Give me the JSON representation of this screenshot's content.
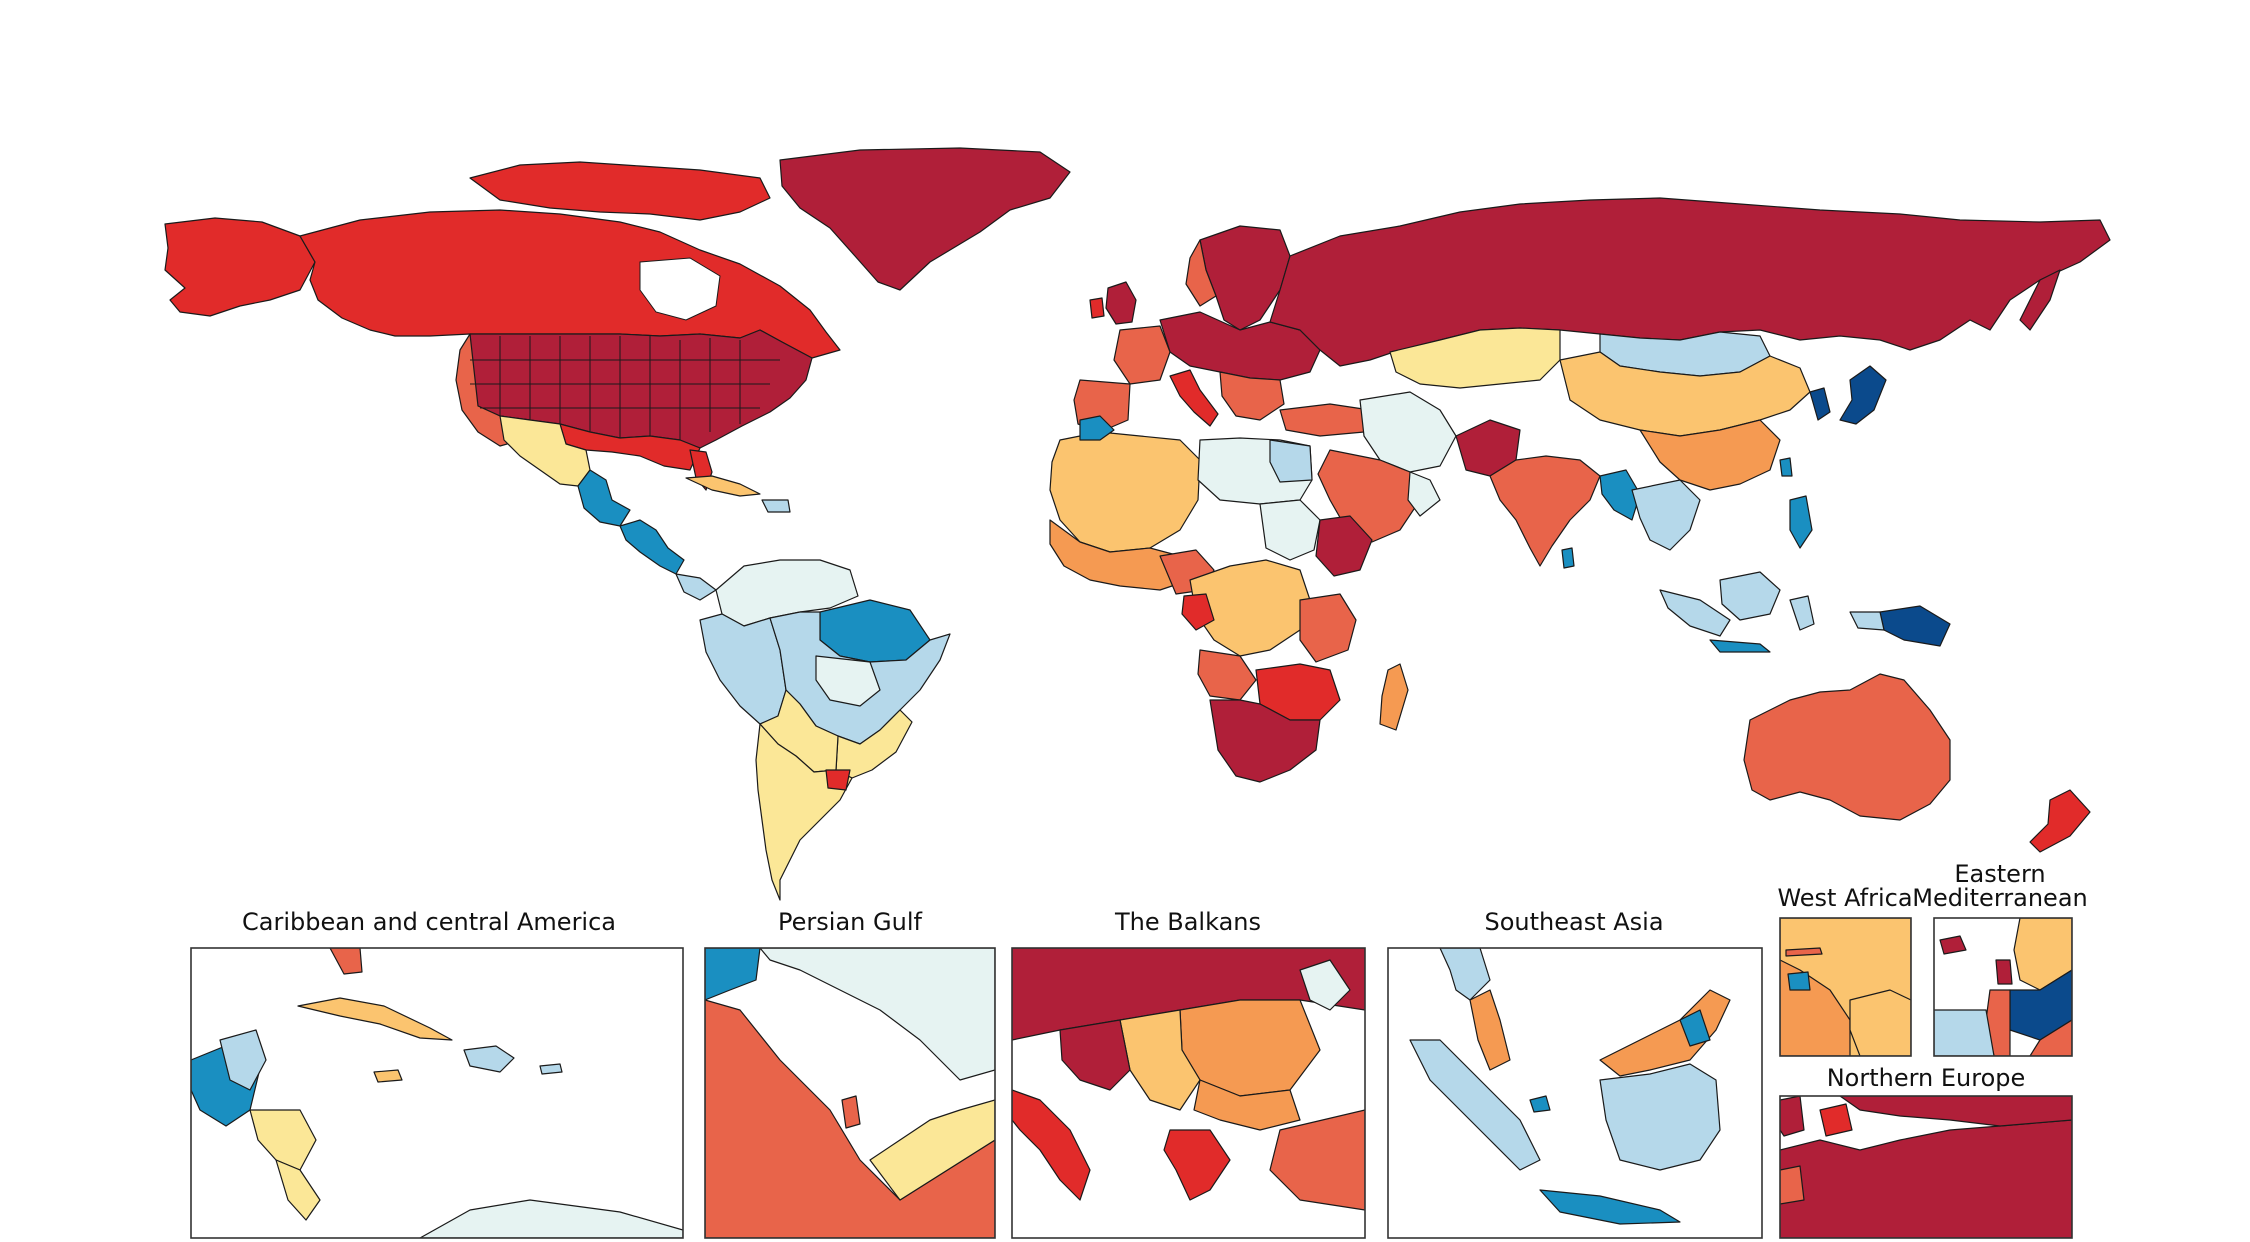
{
  "map": {
    "legend_present": false,
    "palette": {
      "c1": "#0b4a8c",
      "c2": "#1a8fc1",
      "c3": "#b5d8ea",
      "c4": "#e6f3f2",
      "c5": "#fbe797",
      "c6": "#fbc46f",
      "c7": "#f59a52",
      "c8": "#e8644a",
      "c9": "#e12b2a",
      "c10": "#b01f39"
    },
    "insets": [
      {
        "title": "Caribbean and central America"
      },
      {
        "title": "Persian Gulf"
      },
      {
        "title": "The Balkans"
      },
      {
        "title": "Southeast Asia"
      },
      {
        "title": "West Africa"
      },
      {
        "title": "Eastern Mediterranean"
      },
      {
        "title": "Northern Europe"
      }
    ]
  }
}
